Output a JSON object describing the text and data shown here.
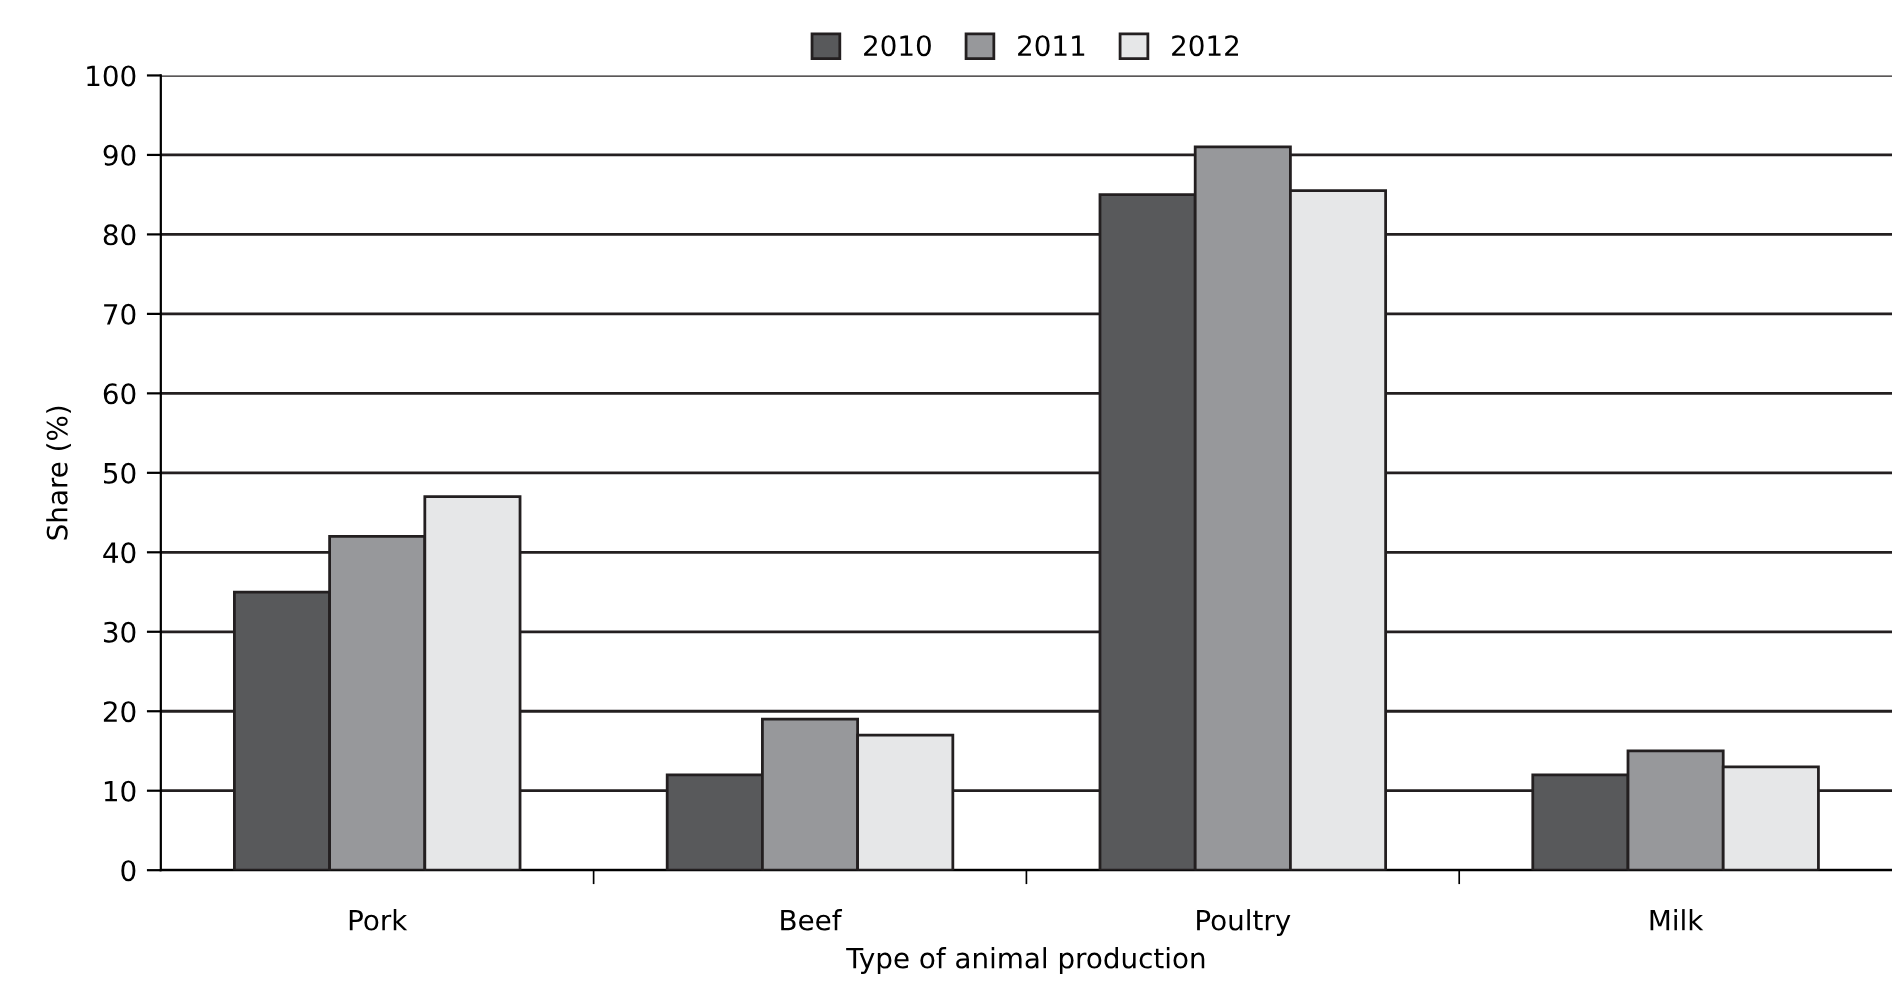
{
  "chart_data": {
    "type": "bar",
    "xlabel": "Type of animal production",
    "ylabel": "Share (%)",
    "categories": [
      "Pork",
      "Beef",
      "Poultry",
      "Milk"
    ],
    "series": [
      {
        "name": "2010",
        "color": "#58595b",
        "values": [
          35,
          12,
          85,
          12
        ]
      },
      {
        "name": "2011",
        "color": "#97989b",
        "values": [
          42,
          19,
          91,
          15
        ]
      },
      {
        "name": "2012",
        "color": "#e6e7e8",
        "values": [
          47,
          17,
          85.5,
          13
        ]
      }
    ],
    "ylim": [
      0,
      100
    ],
    "yticks": [
      0,
      10,
      20,
      30,
      40,
      50,
      60,
      70,
      80,
      90,
      100
    ],
    "grid": "y",
    "legend": "top"
  }
}
